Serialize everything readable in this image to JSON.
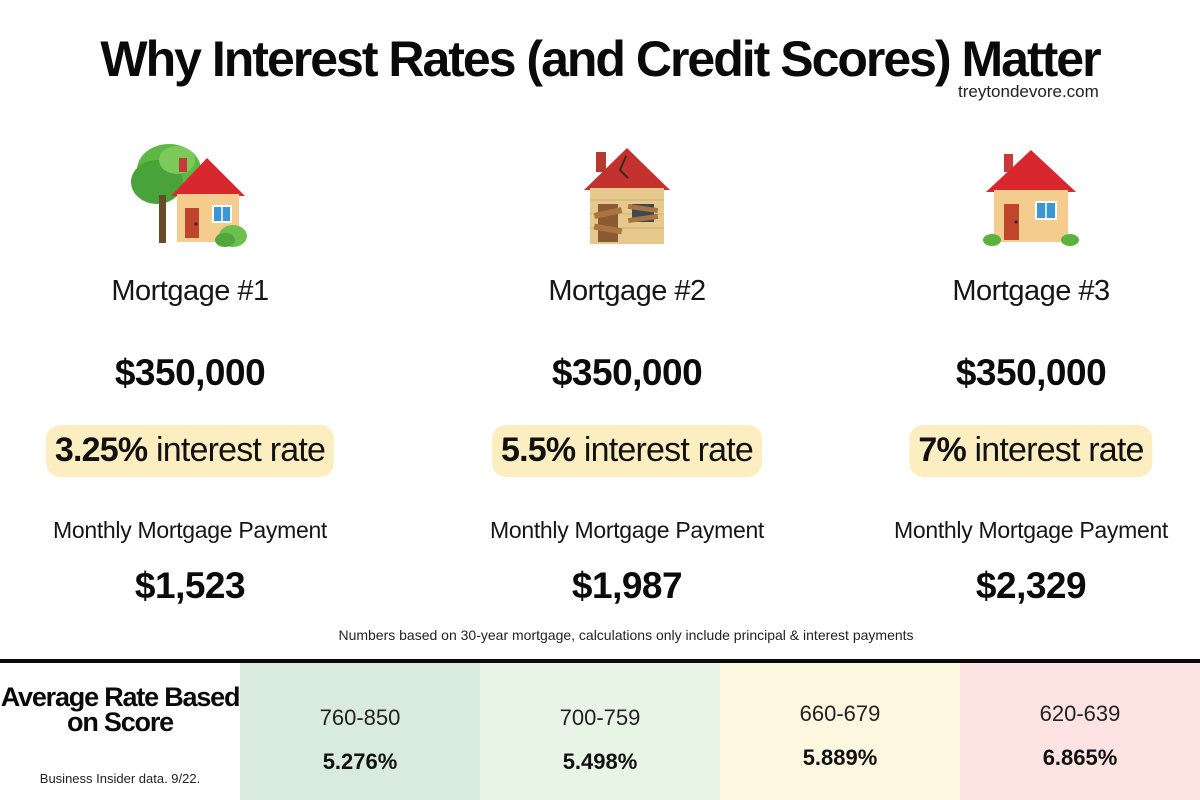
{
  "title": "Why Interest Rates (and Credit Scores) Matter",
  "site": "treytondevore.com",
  "mortgages": [
    {
      "icon": "house-with-garden-icon",
      "name": "Mortgage #1",
      "amount": "$350,000",
      "rate_value": "3.25%",
      "rate_suffix": " interest rate",
      "payment_label": "Monthly Mortgage Payment",
      "payment": "$1,523"
    },
    {
      "icon": "derelict-house-icon",
      "name": "Mortgage #2",
      "amount": "$350,000",
      "rate_value": "5.5%",
      "rate_suffix": " interest rate",
      "payment_label": "Monthly Mortgage Payment",
      "payment": "$1,987"
    },
    {
      "icon": "house-icon",
      "name": "Mortgage #3",
      "amount": "$350,000",
      "rate_value": "7%",
      "rate_suffix": " interest rate",
      "payment_label": "Monthly Mortgage Payment",
      "payment": "$2,329"
    }
  ],
  "footnote": "Numbers based on 30-year mortgage, calculations only include principal & interest payments",
  "score_table": {
    "title": "Average Rate Based on Score",
    "source": "Business Insider data. 9/22.",
    "tiers": [
      {
        "range": "760-850",
        "rate": "5.276%",
        "color": "#d9ebdf"
      },
      {
        "range": "700-759",
        "rate": "5.498%",
        "color": "#e8f5e6"
      },
      {
        "range": "660-679",
        "rate": "5.889%",
        "color": "#fdf7e0"
      },
      {
        "range": "620-639",
        "rate": "6.865%",
        "color": "#fde3e2"
      }
    ]
  },
  "colors": {
    "rate_highlight": "#fdeec1",
    "divider": "#0a0a0a"
  }
}
